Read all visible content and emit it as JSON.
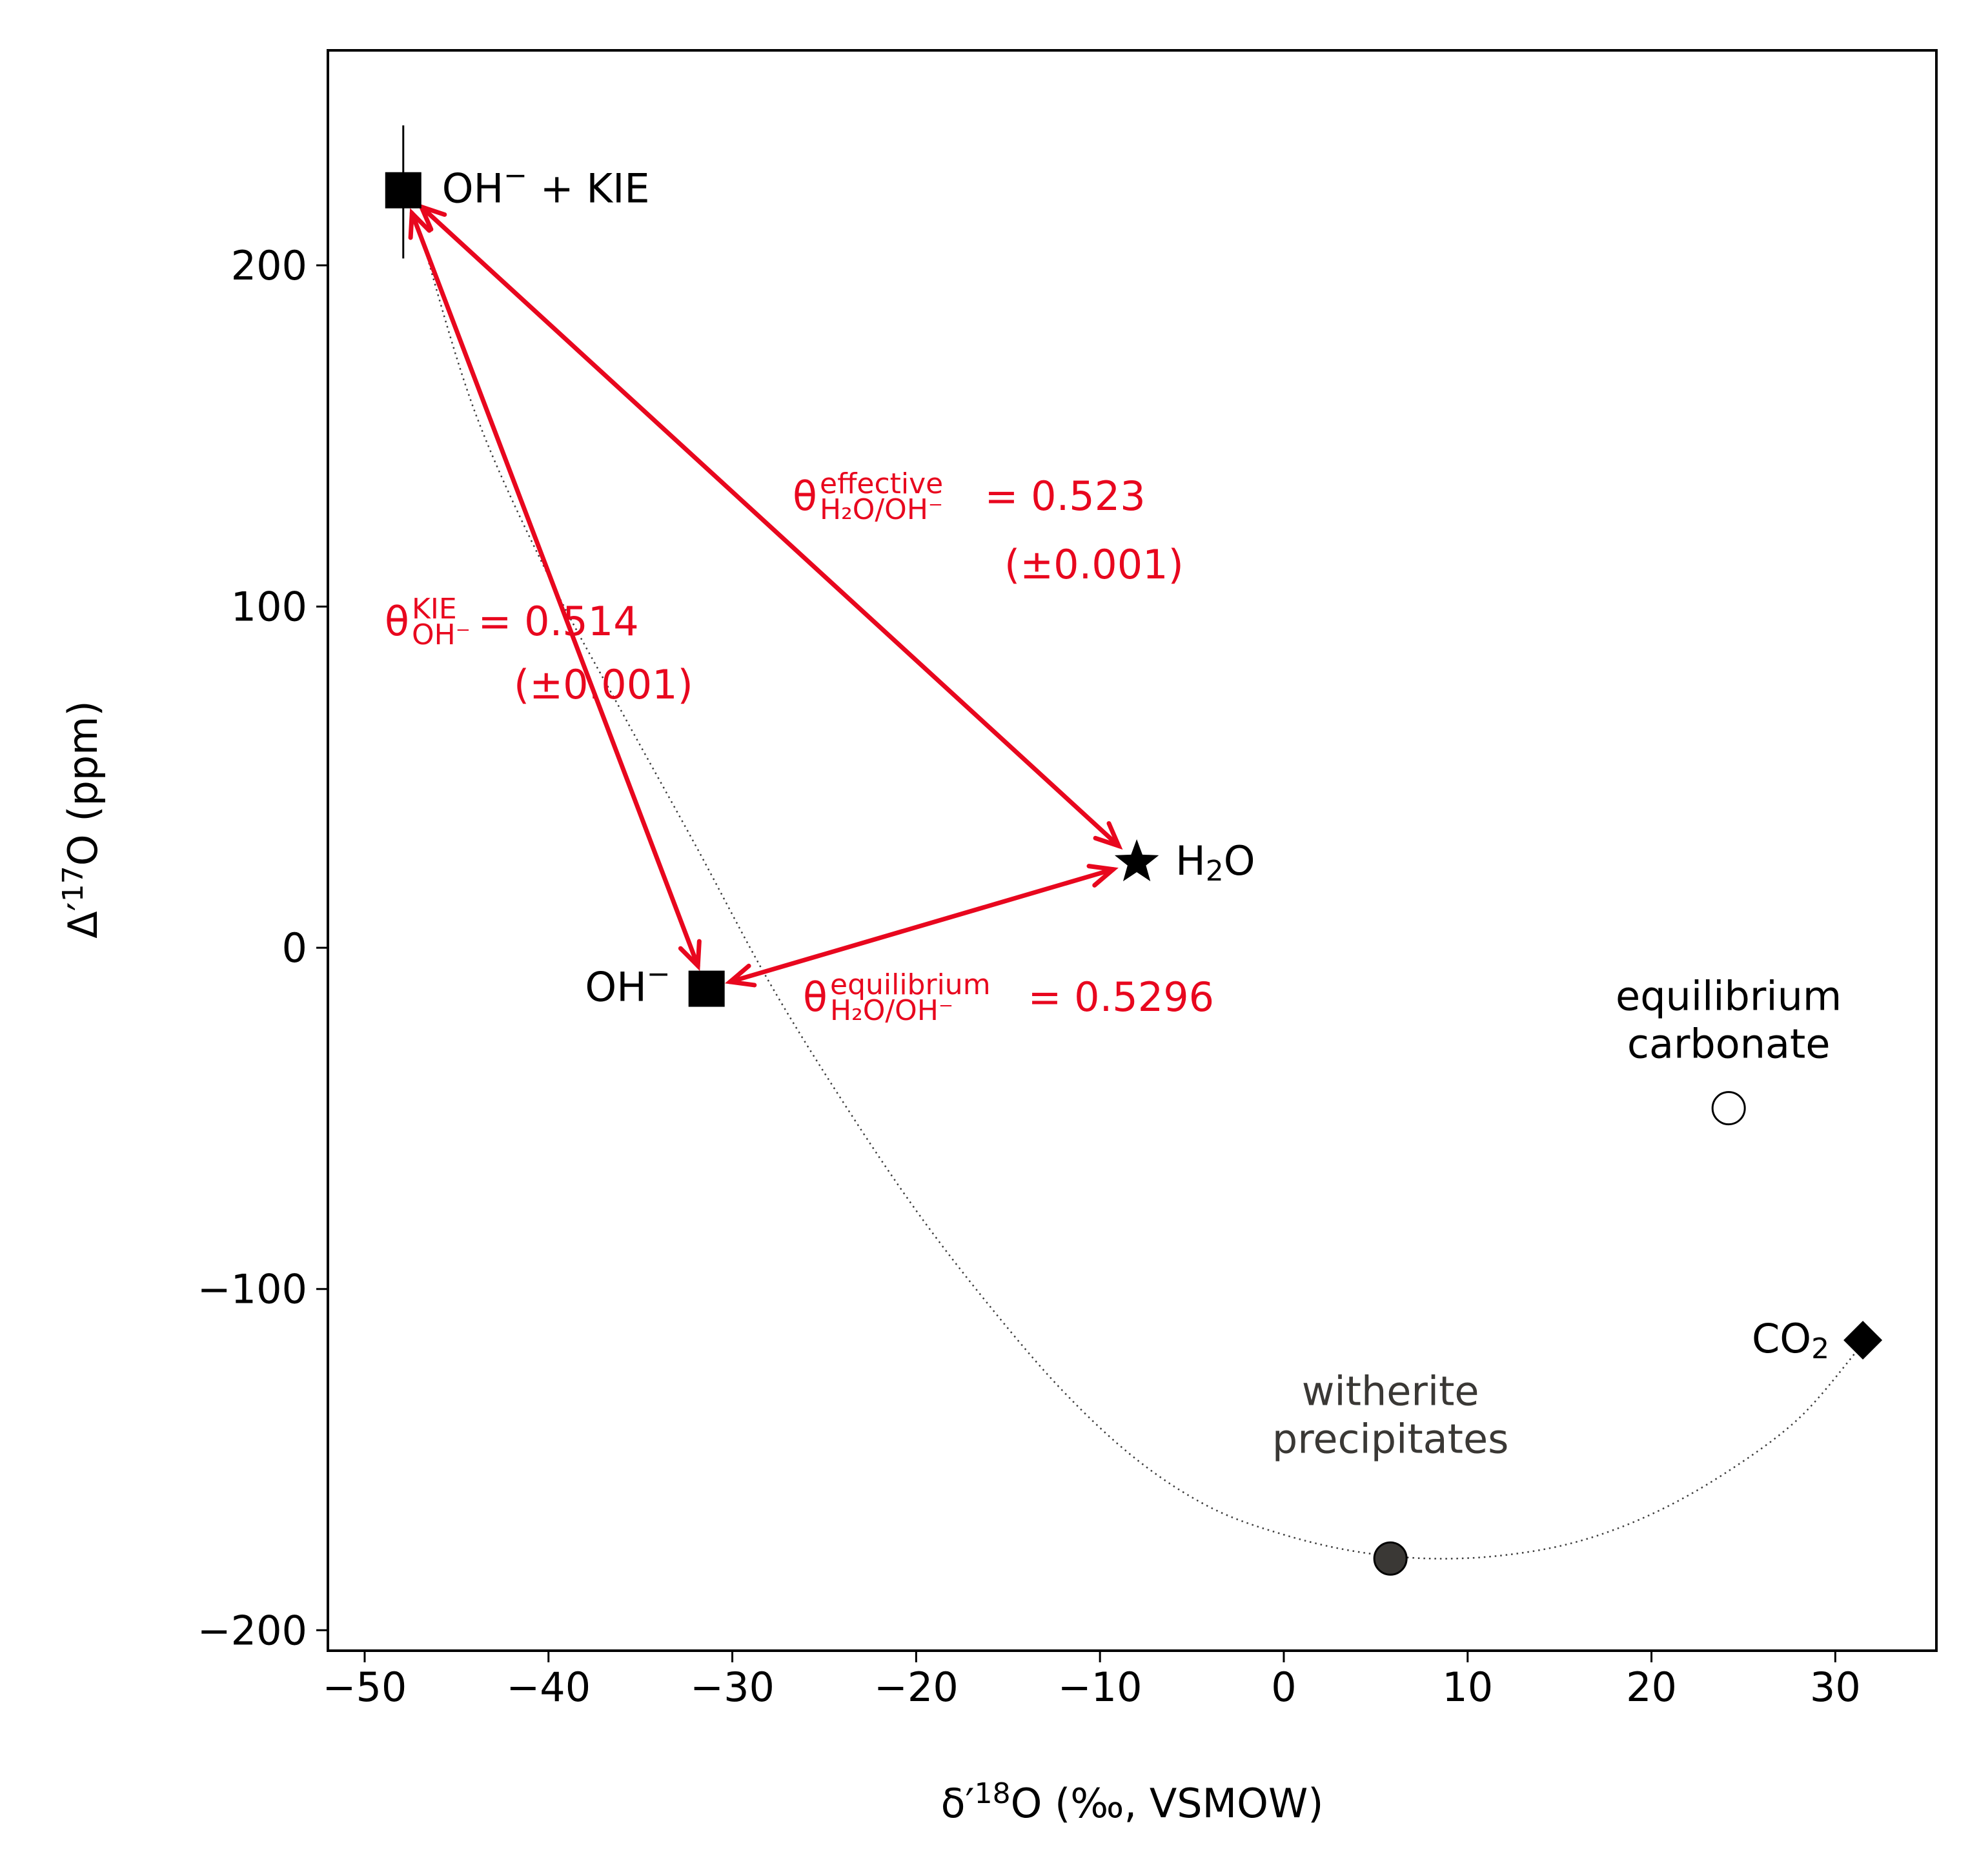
{
  "chart_data": {
    "type": "scatter",
    "xlabel": {
      "pre": "δ′",
      "sup": "18",
      "post": "O (‰, VSMOW)"
    },
    "ylabel": {
      "pre": "Δ′",
      "sup": "17",
      "post": "O (ppm)"
    },
    "xlim": [
      -52,
      35.5
    ],
    "ylim": [
      -206,
      263
    ],
    "xticks": [
      -50,
      -40,
      -30,
      -20,
      -10,
      0,
      10,
      20,
      30
    ],
    "xtick_labels": [
      "−50",
      "−40",
      "−30",
      "−20",
      "−10",
      "0",
      "10",
      "20",
      "30"
    ],
    "yticks": [
      -200,
      -100,
      0,
      100,
      200
    ],
    "ytick_labels": [
      "−200",
      "−100",
      "0",
      "100",
      "200"
    ],
    "points": [
      {
        "id": "oh-kie",
        "x": -47.9,
        "y": 222,
        "yerr": [
          202,
          241
        ],
        "marker": "square",
        "fill": "#000000",
        "label": {
          "base": "OH",
          "sup": "−",
          "post": " + KIE"
        }
      },
      {
        "id": "h2o",
        "x": -8.0,
        "y": 25,
        "marker": "star",
        "fill": "#000000",
        "label": {
          "base": "H",
          "sub": "2",
          "post": "O"
        }
      },
      {
        "id": "oh",
        "x": -31.4,
        "y": -12,
        "marker": "square",
        "fill": "#000000",
        "label": {
          "base": "OH",
          "sup": "−"
        }
      },
      {
        "id": "eq-carbonate",
        "x": 24.2,
        "y": -47,
        "marker": "circle-open",
        "fill": "#ffffff",
        "label_lines": [
          "equilibrium",
          "carbonate"
        ]
      },
      {
        "id": "co2",
        "x": 31.5,
        "y": -115,
        "marker": "diamond",
        "fill": "#000000",
        "label": {
          "base": "CO",
          "sub": "2"
        }
      },
      {
        "id": "witherite",
        "x": 5.8,
        "y": -179,
        "marker": "circle",
        "fill": "#3a3835",
        "label_lines": [
          "witherite",
          "precipitates"
        ]
      }
    ],
    "mixing_curve": {
      "style": "dotted",
      "color": "#3b3b3b",
      "points": [
        [
          -47.0,
          210
        ],
        [
          -44.0,
          157
        ],
        [
          -40.0,
          109
        ],
        [
          -36.0,
          69
        ],
        [
          -32.0,
          30
        ],
        [
          -28.0,
          -10
        ],
        [
          -24.0,
          -45
        ],
        [
          -20.0,
          -77
        ],
        [
          -16.0,
          -105
        ],
        [
          -12.0,
          -130
        ],
        [
          -8.0,
          -150
        ],
        [
          -4.0,
          -164
        ],
        [
          0.0,
          -172
        ],
        [
          4.0,
          -177
        ],
        [
          8.0,
          -179
        ],
        [
          12.0,
          -178
        ],
        [
          16.0,
          -174
        ],
        [
          20.0,
          -166
        ],
        [
          24.0,
          -154
        ],
        [
          28.0,
          -138
        ],
        [
          31.2,
          -118
        ]
      ]
    },
    "arrows": [
      {
        "id": "kie",
        "from": "oh",
        "to": "oh-kie",
        "color": "#e8071e"
      },
      {
        "id": "effective",
        "from": "oh-kie",
        "to": "h2o",
        "color": "#e8071e"
      },
      {
        "id": "equilibrium",
        "from": "oh",
        "to": "h2o",
        "color": "#e8071e"
      }
    ],
    "annotations": [
      {
        "id": "theta-effective",
        "sup": "effective",
        "sub": "H₂O/OH⁻",
        "value": "= 0.523",
        "err": "(±0.001)",
        "color": "#e8071e"
      },
      {
        "id": "theta-kie",
        "sup": "KIE",
        "sub": "OH⁻",
        "value": "= 0.514",
        "err": "(±0.001)",
        "color": "#e8071e"
      },
      {
        "id": "theta-equilibrium",
        "sup": "equilibrium",
        "sub": "H₂O/OH⁻",
        "value": "= 0.5296",
        "color": "#e8071e"
      }
    ],
    "annotation_symbol": "θ"
  }
}
